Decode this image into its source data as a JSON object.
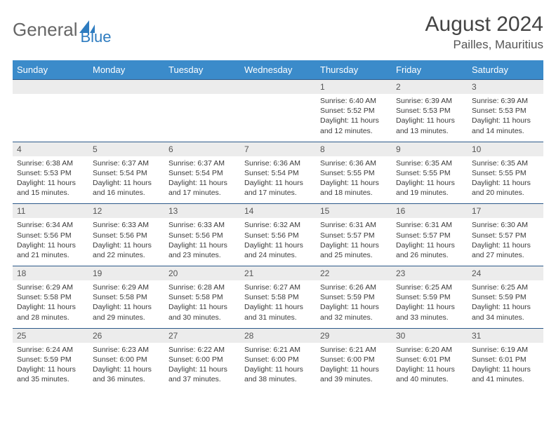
{
  "logo": {
    "part1": "General",
    "part2": "Blue"
  },
  "title": "August 2024",
  "location": "Pailles, Mauritius",
  "colors": {
    "header_bg": "#3b8bca",
    "header_text": "#ffffff",
    "daynum_bg": "#ececec",
    "week_border": "#2c5a8a",
    "text": "#333333",
    "logo_blue": "#2e7cc0"
  },
  "day_names": [
    "Sunday",
    "Monday",
    "Tuesday",
    "Wednesday",
    "Thursday",
    "Friday",
    "Saturday"
  ],
  "weeks": [
    [
      null,
      null,
      null,
      null,
      {
        "n": "1",
        "sr": "6:40 AM",
        "ss": "5:52 PM",
        "dl": "11 hours and 12 minutes."
      },
      {
        "n": "2",
        "sr": "6:39 AM",
        "ss": "5:53 PM",
        "dl": "11 hours and 13 minutes."
      },
      {
        "n": "3",
        "sr": "6:39 AM",
        "ss": "5:53 PM",
        "dl": "11 hours and 14 minutes."
      }
    ],
    [
      {
        "n": "4",
        "sr": "6:38 AM",
        "ss": "5:53 PM",
        "dl": "11 hours and 15 minutes."
      },
      {
        "n": "5",
        "sr": "6:37 AM",
        "ss": "5:54 PM",
        "dl": "11 hours and 16 minutes."
      },
      {
        "n": "6",
        "sr": "6:37 AM",
        "ss": "5:54 PM",
        "dl": "11 hours and 17 minutes."
      },
      {
        "n": "7",
        "sr": "6:36 AM",
        "ss": "5:54 PM",
        "dl": "11 hours and 17 minutes."
      },
      {
        "n": "8",
        "sr": "6:36 AM",
        "ss": "5:55 PM",
        "dl": "11 hours and 18 minutes."
      },
      {
        "n": "9",
        "sr": "6:35 AM",
        "ss": "5:55 PM",
        "dl": "11 hours and 19 minutes."
      },
      {
        "n": "10",
        "sr": "6:35 AM",
        "ss": "5:55 PM",
        "dl": "11 hours and 20 minutes."
      }
    ],
    [
      {
        "n": "11",
        "sr": "6:34 AM",
        "ss": "5:56 PM",
        "dl": "11 hours and 21 minutes."
      },
      {
        "n": "12",
        "sr": "6:33 AM",
        "ss": "5:56 PM",
        "dl": "11 hours and 22 minutes."
      },
      {
        "n": "13",
        "sr": "6:33 AM",
        "ss": "5:56 PM",
        "dl": "11 hours and 23 minutes."
      },
      {
        "n": "14",
        "sr": "6:32 AM",
        "ss": "5:56 PM",
        "dl": "11 hours and 24 minutes."
      },
      {
        "n": "15",
        "sr": "6:31 AM",
        "ss": "5:57 PM",
        "dl": "11 hours and 25 minutes."
      },
      {
        "n": "16",
        "sr": "6:31 AM",
        "ss": "5:57 PM",
        "dl": "11 hours and 26 minutes."
      },
      {
        "n": "17",
        "sr": "6:30 AM",
        "ss": "5:57 PM",
        "dl": "11 hours and 27 minutes."
      }
    ],
    [
      {
        "n": "18",
        "sr": "6:29 AM",
        "ss": "5:58 PM",
        "dl": "11 hours and 28 minutes."
      },
      {
        "n": "19",
        "sr": "6:29 AM",
        "ss": "5:58 PM",
        "dl": "11 hours and 29 minutes."
      },
      {
        "n": "20",
        "sr": "6:28 AM",
        "ss": "5:58 PM",
        "dl": "11 hours and 30 minutes."
      },
      {
        "n": "21",
        "sr": "6:27 AM",
        "ss": "5:58 PM",
        "dl": "11 hours and 31 minutes."
      },
      {
        "n": "22",
        "sr": "6:26 AM",
        "ss": "5:59 PM",
        "dl": "11 hours and 32 minutes."
      },
      {
        "n": "23",
        "sr": "6:25 AM",
        "ss": "5:59 PM",
        "dl": "11 hours and 33 minutes."
      },
      {
        "n": "24",
        "sr": "6:25 AM",
        "ss": "5:59 PM",
        "dl": "11 hours and 34 minutes."
      }
    ],
    [
      {
        "n": "25",
        "sr": "6:24 AM",
        "ss": "5:59 PM",
        "dl": "11 hours and 35 minutes."
      },
      {
        "n": "26",
        "sr": "6:23 AM",
        "ss": "6:00 PM",
        "dl": "11 hours and 36 minutes."
      },
      {
        "n": "27",
        "sr": "6:22 AM",
        "ss": "6:00 PM",
        "dl": "11 hours and 37 minutes."
      },
      {
        "n": "28",
        "sr": "6:21 AM",
        "ss": "6:00 PM",
        "dl": "11 hours and 38 minutes."
      },
      {
        "n": "29",
        "sr": "6:21 AM",
        "ss": "6:00 PM",
        "dl": "11 hours and 39 minutes."
      },
      {
        "n": "30",
        "sr": "6:20 AM",
        "ss": "6:01 PM",
        "dl": "11 hours and 40 minutes."
      },
      {
        "n": "31",
        "sr": "6:19 AM",
        "ss": "6:01 PM",
        "dl": "11 hours and 41 minutes."
      }
    ]
  ],
  "labels": {
    "sunrise": "Sunrise:",
    "sunset": "Sunset:",
    "daylight": "Daylight:"
  }
}
